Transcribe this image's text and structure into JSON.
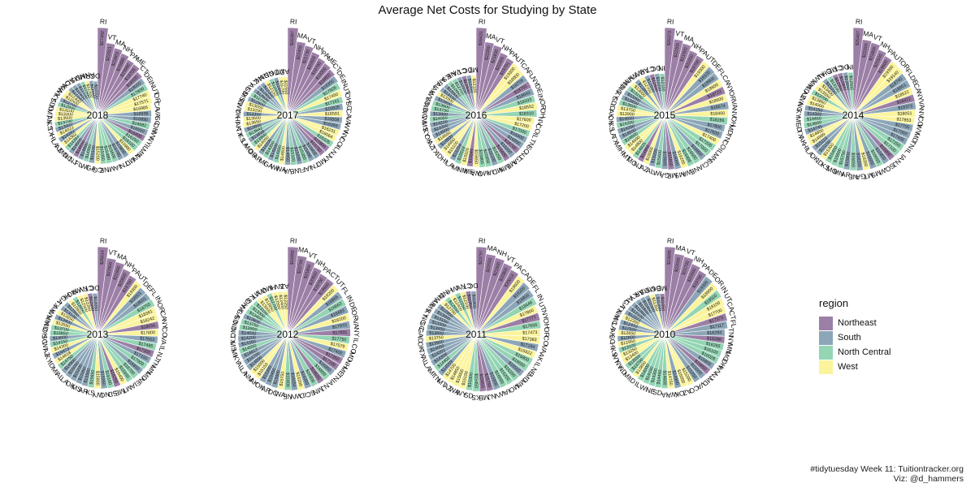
{
  "chart_data": {
    "type": "polar-bar",
    "title": "Average Net Costs for Studying by State",
    "legend": {
      "title": "region",
      "placement": "right",
      "entries": [
        {
          "name": "Northeast",
          "color": "#9c7fa6"
        },
        {
          "name": "South",
          "color": "#8ca6b8"
        },
        {
          "name": "North Central",
          "color": "#94d5b4"
        },
        {
          "name": "West",
          "color": "#fbf49c"
        }
      ]
    },
    "caption": [
      "#tidytuesday Week 11: Tuitiontracker.org",
      "Viz: @d_hammers"
    ],
    "panels": [
      {
        "year": "2018",
        "states": [
          "RI",
          "VT",
          "MA",
          "NH",
          "PA",
          "ME",
          "CT",
          "DE",
          "IN",
          "UT",
          "OR",
          "CA",
          "VA",
          "SC",
          "OH",
          "WV",
          "NY",
          "IL",
          "MN",
          "NV",
          "MD",
          "TN",
          "IA",
          "MI",
          "NE",
          "CO",
          "GA",
          "WI",
          "FL",
          "NJ",
          "NC",
          "MO",
          "AZ",
          "LA",
          "HI",
          "TX",
          "KS",
          "AK",
          "MT",
          "ID",
          "SD",
          "KY",
          "WY",
          "WA",
          "OK",
          "AL",
          "MS",
          "ND",
          "NM",
          "AR",
          "DC"
        ],
        "values": [
          27492,
          22921,
          21803,
          20880,
          19900,
          19700,
          18500,
          18000,
          17800,
          17740,
          17571,
          16985,
          16936,
          16890,
          16682,
          16550,
          16400,
          16250,
          16100,
          15980,
          15850,
          15700,
          15600,
          15480,
          15350,
          15200,
          15100,
          14950,
          14800,
          14650,
          14500,
          14383,
          14382,
          14292,
          14023,
          13900,
          13700,
          13500,
          13300,
          13100,
          12900,
          12700,
          12500,
          12300,
          12100,
          11900,
          11700,
          11500,
          11300,
          11000,
          10700
        ]
      },
      {
        "year": "2017",
        "states": [
          "RI",
          "MA",
          "VT",
          "NH",
          "PA",
          "ME",
          "CT",
          "DE",
          "IN",
          "UT",
          "OH",
          "SC",
          "CA",
          "VA",
          "WV",
          "NV",
          "CO",
          "IL",
          "NJ",
          "NY",
          "MD",
          "TN",
          "IA",
          "FL",
          "NE",
          "VA2",
          "WA",
          "WI",
          "GA",
          "MI",
          "AR",
          "OR",
          "MO",
          "LA",
          "KS",
          "TX",
          "AK",
          "HI",
          "OK",
          "WY",
          "ID",
          "MS",
          "SD",
          "AL",
          "KY",
          "NC",
          "NM",
          "ND",
          "DC",
          "MT",
          "AZ"
        ],
        "values": [
          26397,
          22400,
          21730,
          20500,
          19700,
          19300,
          18800,
          18300,
          17826,
          17450,
          17161,
          16825,
          16591,
          16508,
          16369,
          16231,
          16064,
          16105,
          15900,
          15750,
          15600,
          15480,
          15350,
          15200,
          15100,
          14950,
          14800,
          14650,
          14500,
          14350,
          14200,
          14050,
          13900,
          13838,
          13842,
          13800,
          13650,
          13500,
          13350,
          13200,
          13050,
          12900,
          12750,
          12600,
          12450,
          12300,
          12150,
          12000,
          11850,
          11700,
          11550
        ]
      },
      {
        "year": "2016",
        "states": [
          "RI",
          "MA",
          "VT",
          "NH",
          "PA",
          "UT",
          "CA",
          "FL",
          "NY",
          "DE",
          "IN",
          "OR",
          "OH",
          "NV",
          "CO",
          "IL",
          "TN",
          "SC",
          "NJ",
          "GA",
          "ME",
          "MN",
          "MD",
          "IA",
          "MO",
          "WA",
          "ME2",
          "NM",
          "MI",
          "LA",
          "HI",
          "ID",
          "TX",
          "AZ",
          "OK",
          "KY",
          "MS",
          "WI",
          "NC",
          "ND",
          "SD",
          "WV",
          "AK",
          "AL",
          "AR",
          "KS",
          "NE",
          "VA",
          "CT",
          "DC",
          "MT"
        ],
        "values": [
          26431,
          22300,
          21830,
          20300,
          19701,
          19300,
          18900,
          18706,
          18701,
          18643,
          18333,
          18552,
          18310,
          17600,
          17200,
          17000,
          16900,
          16800,
          16700,
          16550,
          16400,
          16250,
          16100,
          15950,
          15800,
          15650,
          15544,
          15526,
          15519,
          15254,
          15100,
          14950,
          14800,
          14650,
          14500,
          14350,
          14200,
          14050,
          13900,
          13750,
          13600,
          13450,
          13300,
          13150,
          13000,
          12850,
          12700,
          12550,
          12400,
          12250,
          12100
        ]
      },
      {
        "year": "2015",
        "states": [
          "RI",
          "VT",
          "MA",
          "NH",
          "PA",
          "UT",
          "DE",
          "FL",
          "CA",
          "NY",
          "OR",
          "VA",
          "NV",
          "OH",
          "MD",
          "TN",
          "CO",
          "IL",
          "MN",
          "SC",
          "IA",
          "NE",
          "WA",
          "MS",
          "ME",
          "GA",
          "WI",
          "AL",
          "AZ",
          "NJ",
          "MO",
          "MT",
          "HI",
          "MI",
          "TX",
          "LA",
          "KS",
          "OK",
          "AK",
          "ID",
          "SD",
          "KY",
          "NC",
          "ND",
          "NM",
          "WV",
          "WY",
          "AR",
          "CT",
          "DC",
          "IN"
        ],
        "values": [
          25373,
          22200,
          21500,
          20200,
          19700,
          19300,
          19100,
          18900,
          18800,
          18723,
          18600,
          18674,
          18400,
          18286,
          17800,
          17600,
          17400,
          17200,
          17000,
          16800,
          16600,
          16400,
          16200,
          16000,
          15800,
          15600,
          15400,
          15200,
          15000,
          14966,
          14925,
          14800,
          14690,
          14600,
          14500,
          14350,
          14200,
          14050,
          13900,
          13750,
          13600,
          13450,
          13300,
          13150,
          13000,
          12850,
          12700,
          12550,
          12400,
          12250,
          12100
        ]
      },
      {
        "year": "2014",
        "states": [
          "RI",
          "MA",
          "VT",
          "NH",
          "PA",
          "UT",
          "OR",
          "FL",
          "DE",
          "CA",
          "NY",
          "VA",
          "NV",
          "CO",
          "WV",
          "MD",
          "TN",
          "IL",
          "IA",
          "NJ",
          "SC",
          "WI",
          "MS",
          "MT",
          "GA",
          "NE",
          "AR",
          "MN",
          "MO",
          "KS",
          "ID",
          "OK",
          "LA",
          "HI",
          "AK",
          "TX",
          "SD",
          "MI",
          "KY",
          "NC",
          "WA",
          "AZ",
          "ND",
          "NM",
          "WY",
          "AL",
          "OH",
          "ME",
          "CT",
          "DC",
          "IN"
        ],
        "values": [
          25467,
          22200,
          21800,
          20500,
          19600,
          19300,
          19140,
          18740,
          18651,
          18522,
          18422,
          18373,
          18051,
          17853,
          17700,
          17550,
          17400,
          17250,
          17100,
          16950,
          16800,
          16650,
          16500,
          16350,
          16200,
          16050,
          15900,
          15750,
          15600,
          15450,
          15300,
          15150,
          15113,
          14999,
          14850,
          14745,
          14600,
          14450,
          14300,
          14150,
          14000,
          13850,
          13700,
          13550,
          13400,
          13250,
          13100,
          12950,
          12800,
          12650,
          12500
        ]
      },
      {
        "year": "2013",
        "states": [
          "RI",
          "VT",
          "MA",
          "NH",
          "PA",
          "UT",
          "DE",
          "FL",
          "IN",
          "OR",
          "CA",
          "NY",
          "CO",
          "VA",
          "IL",
          "NJ",
          "TN",
          "MN",
          "MD",
          "NE",
          "IA",
          "MT",
          "ME",
          "SD",
          "NC",
          "WY",
          "KS",
          "AR",
          "MS",
          "OK",
          "LA",
          "AL",
          "MI",
          "ID",
          "KY",
          "AZ",
          "WI",
          "SC",
          "OH",
          "ND",
          "NM",
          "WV",
          "AK",
          "TX",
          "GA",
          "HI",
          "MO",
          "WA",
          "NV",
          "CT",
          "DC"
        ],
        "values": [
          25614,
          22500,
          21900,
          20600,
          19700,
          19300,
          18601,
          18601,
          18755,
          18361,
          18242,
          18056,
          17800,
          17653,
          17485,
          17300,
          17150,
          17000,
          16850,
          16700,
          16550,
          16400,
          16250,
          16100,
          15950,
          15800,
          15650,
          15500,
          15350,
          15200,
          15050,
          14900,
          14750,
          14618,
          14473,
          14300,
          14150,
          14000,
          13850,
          13700,
          13550,
          13400,
          13250,
          13100,
          12950,
          12800,
          12650,
          12500,
          12350,
          12200,
          12050
        ]
      },
      {
        "year": "2012",
        "states": [
          "RI",
          "MA",
          "VT",
          "NH",
          "PA",
          "CT",
          "UT",
          "FL",
          "IN",
          "DE",
          "OR",
          "VA",
          "NY",
          "IL",
          "CO",
          "MD",
          "NH2",
          "ME",
          "TN",
          "IA",
          "NJ",
          "MN",
          "SC",
          "ID",
          "WV",
          "NE",
          "WA",
          "DC",
          "AR",
          "OK",
          "AK",
          "NM",
          "LA",
          "AL",
          "KY",
          "MI",
          "MS",
          "TX",
          "NC",
          "ND",
          "SD",
          "GA",
          "WI",
          "OH",
          "KS",
          "MT",
          "WY",
          "MO",
          "HI",
          "NV",
          "AZ"
        ],
        "values": [
          24992,
          22700,
          21800,
          20600,
          19700,
          19600,
          19200,
          18865,
          18663,
          18483,
          18200,
          17970,
          17931,
          17750,
          17579,
          17400,
          17250,
          17100,
          16950,
          16800,
          16650,
          16500,
          16350,
          16200,
          16050,
          15900,
          15750,
          15600,
          15450,
          15300,
          15150,
          15000,
          14850,
          14700,
          14617,
          14550,
          14350,
          14200,
          14050,
          13900,
          13750,
          13600,
          13450,
          13300,
          13150,
          13000,
          12850,
          12700,
          12550,
          12400,
          12250
        ]
      },
      {
        "year": "2011",
        "states": [
          "RI",
          "MA",
          "NH",
          "VT",
          "PA",
          "CA",
          "DE",
          "FL",
          "IN",
          "UT",
          "NY",
          "OH",
          "OR",
          "CO",
          "VA",
          "AK",
          "IL",
          "NE",
          "MD",
          "MN",
          "MO",
          "IA",
          "WV",
          "NJ",
          "ME",
          "KS",
          "SD",
          "WY",
          "WA",
          "AZ",
          "MT",
          "TN",
          "MI",
          "LA",
          "AL",
          "TX",
          "OK",
          "ID",
          "GA",
          "SC",
          "NC",
          "KY",
          "MS",
          "AR",
          "NM",
          "ND",
          "HI",
          "WI",
          "NV",
          "CT",
          "DC"
        ],
        "values": [
          23797,
          22031,
          21500,
          20800,
          20013,
          19600,
          19200,
          18800,
          18446,
          17800,
          17777,
          17656,
          17473,
          17383,
          17184,
          16922,
          16800,
          16650,
          16500,
          16350,
          16200,
          16050,
          15900,
          15750,
          15600,
          15450,
          15300,
          15150,
          15000,
          14850,
          14700,
          14559,
          14402,
          14358,
          14201,
          14050,
          13900,
          13750,
          13600,
          13450,
          13300,
          13150,
          13000,
          12850,
          12700,
          12550,
          12400,
          12250,
          12100,
          11950,
          11800
        ]
      },
      {
        "year": "2010",
        "states": [
          "RI",
          "MA",
          "VT",
          "NH",
          "PA",
          "DE",
          "OR",
          "IN",
          "UT",
          "CA",
          "CT",
          "FL",
          "TN",
          "NY",
          "MN",
          "MO",
          "OH",
          "WV",
          "NJ",
          "MD",
          "VA",
          "CO",
          "AZ",
          "OK",
          "WA",
          "IA",
          "SD",
          "NE",
          "WI",
          "IL",
          "ID",
          "MI",
          "ND",
          "NV",
          "WY",
          "KS",
          "HI",
          "SC",
          "AK",
          "LA",
          "NC",
          "NM",
          "TX",
          "GA",
          "AL",
          "KY",
          "AR",
          "MS",
          "MT",
          "DC",
          "ME"
        ],
        "values": [
          23695,
          22000,
          21700,
          20500,
          19700,
          19300,
          18900,
          18500,
          18100,
          17700,
          17373,
          17117,
          16294,
          16280,
          16265,
          16100,
          16028,
          15800,
          15650,
          15500,
          15350,
          15200,
          15050,
          14900,
          14750,
          14600,
          14450,
          14300,
          14150,
          14000,
          13850,
          13700,
          13550,
          13400,
          13250,
          13100,
          12950,
          12800,
          12650,
          12500,
          12433,
          12350,
          12221,
          12100,
          11950,
          11800,
          11650,
          11500,
          11350,
          11200,
          11050
        ]
      }
    ],
    "state_regions": {
      "Northeast": [
        "RI",
        "VT",
        "MA",
        "NH",
        "PA",
        "ME",
        "CT",
        "NJ",
        "NY",
        "NH2",
        "ME2"
      ],
      "South": [
        "DE",
        "VA",
        "VA2",
        "SC",
        "WV",
        "MD",
        "TN",
        "GA",
        "FL",
        "NC",
        "LA",
        "TX",
        "OK",
        "AL",
        "MS",
        "AR",
        "DC",
        "KY"
      ],
      "North Central": [
        "IN",
        "OH",
        "IL",
        "MN",
        "IA",
        "MI",
        "NE",
        "WI",
        "MO",
        "KS",
        "SD",
        "ND"
      ],
      "West": [
        "UT",
        "OR",
        "CA",
        "NV",
        "CO",
        "AZ",
        "HI",
        "AK",
        "MT",
        "ID",
        "WY",
        "WA",
        "NM"
      ]
    }
  }
}
